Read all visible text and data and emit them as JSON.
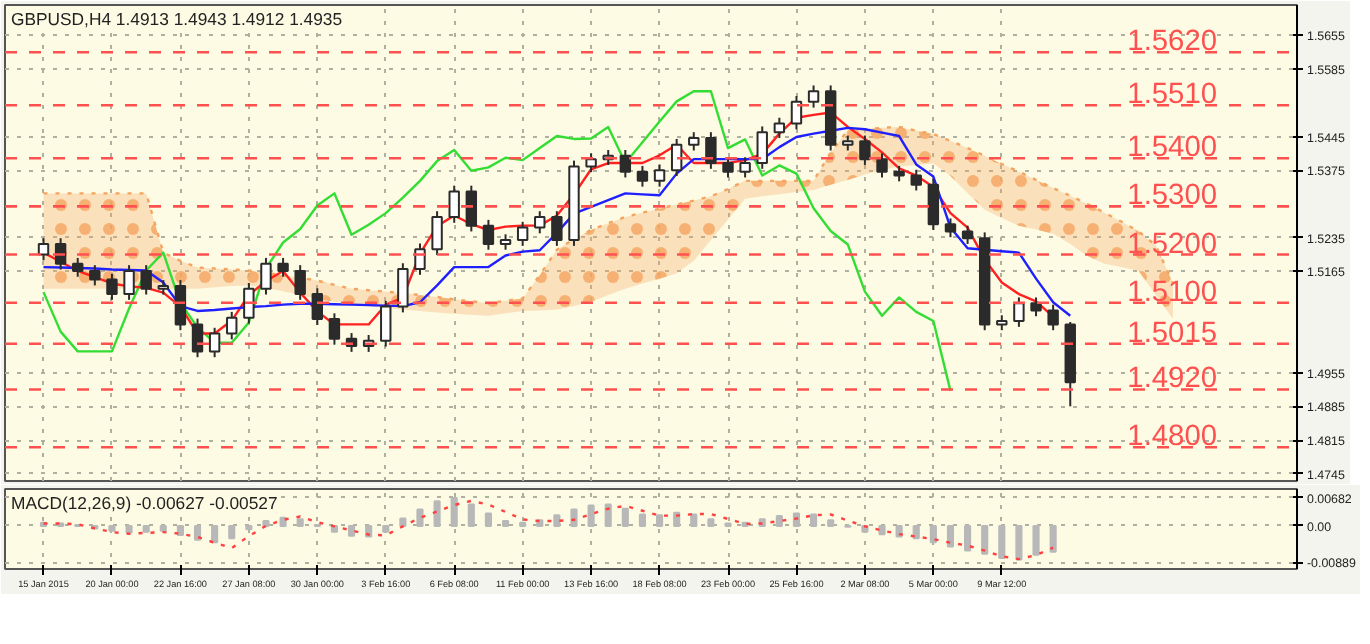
{
  "chart_data": [
    {
      "type": "candlestick",
      "title": "GBPUSD,H4 1.4913 1.4943 1.4912 1.4935",
      "color": "#2b2b2b",
      "tick_labels": "y",
      "grid": true,
      "ylim": [
        1.473,
        1.5718
      ],
      "yticks": [
        1.4745,
        1.4815,
        1.4885,
        1.4955,
        1.5165,
        1.5235,
        1.5375,
        1.5445,
        1.5585,
        1.5655
      ],
      "categories": [
        null,
        null,
        null,
        null,
        null,
        null,
        null,
        null,
        null,
        null,
        null,
        null,
        null,
        null,
        null,
        null,
        null,
        null,
        null,
        null,
        null,
        null,
        null,
        null,
        null,
        null,
        null,
        null,
        null,
        null,
        null,
        null,
        null,
        null,
        null,
        null,
        null,
        null,
        null,
        null,
        null,
        null,
        null,
        null,
        null,
        null,
        null,
        null,
        null,
        null,
        null,
        null,
        null,
        null,
        null,
        null,
        null,
        null,
        null,
        null,
        null,
        null,
        null,
        null,
        null,
        null,
        null
      ],
      "ohlc": [
        [
          1.52,
          1.5234,
          1.5188,
          1.5222
        ],
        [
          1.5222,
          1.5234,
          1.5169,
          1.5181
        ],
        [
          1.5181,
          1.5193,
          1.5154,
          1.5166
        ],
        [
          1.5166,
          1.5178,
          1.5136,
          1.5148
        ],
        [
          1.5148,
          1.516,
          1.5106,
          1.5118
        ],
        [
          1.5118,
          1.5178,
          1.5106,
          1.5166
        ],
        [
          1.5166,
          1.5178,
          1.5117,
          1.5129
        ],
        [
          1.5129,
          1.5147,
          1.5117,
          1.5135
        ],
        [
          1.5135,
          1.5147,
          1.5043,
          1.5055
        ],
        [
          1.5055,
          1.5067,
          1.4987,
          1.4999
        ],
        [
          1.4999,
          1.5048,
          1.4987,
          1.5036
        ],
        [
          1.5036,
          1.5081,
          1.5024,
          1.5069
        ],
        [
          1.5069,
          1.5141,
          1.5057,
          1.5129
        ],
        [
          1.5129,
          1.5193,
          1.5117,
          1.5181
        ],
        [
          1.5181,
          1.5193,
          1.5154,
          1.5166
        ],
        [
          1.5166,
          1.5178,
          1.5106,
          1.5118
        ],
        [
          1.5118,
          1.513,
          1.5054,
          1.5066
        ],
        [
          1.5066,
          1.5078,
          1.5013,
          1.5025
        ],
        [
          1.5025,
          1.5037,
          1.4998,
          1.501
        ],
        [
          1.501,
          1.5033,
          1.4998,
          1.5021
        ],
        [
          1.5021,
          1.5104,
          1.5009,
          1.5092
        ],
        [
          1.5092,
          1.5182,
          1.508,
          1.517
        ],
        [
          1.517,
          1.5223,
          1.5158,
          1.5211
        ],
        [
          1.5211,
          1.529,
          1.5199,
          1.5278
        ],
        [
          1.5278,
          1.5343,
          1.5266,
          1.5331
        ],
        [
          1.5331,
          1.5343,
          1.5248,
          1.526
        ],
        [
          1.526,
          1.5272,
          1.521,
          1.5222
        ],
        [
          1.5222,
          1.5242,
          1.521,
          1.523
        ],
        [
          1.523,
          1.5268,
          1.5218,
          1.5256
        ],
        [
          1.5256,
          1.529,
          1.5244,
          1.5278
        ],
        [
          1.5278,
          1.529,
          1.5218,
          1.523
        ],
        [
          1.523,
          1.5395,
          1.5218,
          1.5383
        ],
        [
          1.5383,
          1.541,
          1.5371,
          1.5398
        ],
        [
          1.5398,
          1.5417,
          1.5386,
          1.5405
        ],
        [
          1.5405,
          1.5417,
          1.536,
          1.5372
        ],
        [
          1.5372,
          1.5384,
          1.5341,
          1.5353
        ],
        [
          1.5353,
          1.5387,
          1.5341,
          1.5375
        ],
        [
          1.5375,
          1.544,
          1.5363,
          1.5428
        ],
        [
          1.5428,
          1.5454,
          1.5416,
          1.5442
        ],
        [
          1.5442,
          1.5454,
          1.5378,
          1.539
        ],
        [
          1.539,
          1.5402,
          1.536,
          1.5372
        ],
        [
          1.5372,
          1.5402,
          1.536,
          1.539
        ],
        [
          1.539,
          1.5466,
          1.5378,
          1.5454
        ],
        [
          1.5454,
          1.5484,
          1.5442,
          1.5472
        ],
        [
          1.5472,
          1.5529,
          1.546,
          1.5517
        ],
        [
          1.5517,
          1.5551,
          1.5505,
          1.5539
        ],
        [
          1.5539,
          1.5551,
          1.5416,
          1.5428
        ],
        [
          1.5428,
          1.5447,
          1.5416,
          1.5435
        ],
        [
          1.5435,
          1.5447,
          1.5386,
          1.5398
        ],
        [
          1.5398,
          1.541,
          1.536,
          1.5372
        ],
        [
          1.5372,
          1.5384,
          1.5352,
          1.5364
        ],
        [
          1.5364,
          1.5376,
          1.5333,
          1.5345
        ],
        [
          1.5345,
          1.5357,
          1.5251,
          1.5263
        ],
        [
          1.5263,
          1.5275,
          1.5236,
          1.5248
        ],
        [
          1.5248,
          1.526,
          1.5222,
          1.5234
        ],
        [
          1.5234,
          1.5246,
          1.5043,
          1.5055
        ],
        [
          1.5055,
          1.5074,
          1.5043,
          1.5062
        ],
        [
          1.5062,
          1.5111,
          1.505,
          1.5099
        ],
        [
          1.5099,
          1.5111,
          1.5072,
          1.5084
        ],
        [
          1.5084,
          1.5096,
          1.5043,
          1.5055
        ],
        [
          1.5055,
          1.506,
          1.4885,
          1.4935
        ],
        null,
        null,
        null,
        null,
        null,
        null
      ],
      "series": [
        {
          "type": "line",
          "line_style": "dotted",
          "color": "#f4a460",
          "values": [
            1.5327,
            1.5327,
            1.5327,
            1.5327,
            1.5327,
            1.5327,
            1.5327,
            1.5204,
            1.5187,
            1.5173,
            1.5171,
            1.5169,
            1.5167,
            1.5162,
            1.5157,
            1.5152,
            1.5146,
            1.5137,
            1.5129,
            1.5126,
            1.5123,
            1.512,
            1.5116,
            1.5112,
            1.5107,
            1.5103,
            1.5099,
            1.5104,
            1.5109,
            1.5157,
            1.521,
            1.5232,
            1.5251,
            1.5265,
            1.5278,
            1.5287,
            1.5295,
            1.5304,
            1.5312,
            1.5321,
            1.5336,
            1.5353,
            1.5353,
            1.5353,
            1.5353,
            1.5353,
            1.5412,
            1.5458,
            1.546,
            1.5463,
            1.5465,
            1.5457,
            1.545,
            1.5436,
            1.5421,
            1.5405,
            1.5388,
            1.5372,
            1.5355,
            1.5338,
            1.5322,
            1.5305,
            1.5287,
            1.5268,
            1.5248,
            1.5219,
            1.5141
          ],
          "lower": [
            1.5129,
            1.5129,
            1.5129,
            1.5129,
            1.5129,
            1.5129,
            1.5129,
            1.5129,
            1.5129,
            1.5129,
            1.5132,
            1.5135,
            1.5136,
            1.5131,
            1.5124,
            1.5116,
            1.5107,
            1.5102,
            1.5099,
            1.5094,
            1.5089,
            1.5086,
            1.5083,
            1.508,
            1.5077,
            1.5075,
            1.5073,
            1.5078,
            1.5083,
            1.5084,
            1.5086,
            1.5093,
            1.5102,
            1.5116,
            1.5129,
            1.514,
            1.515,
            1.5161,
            1.5187,
            1.523,
            1.5273,
            1.5316,
            1.5321,
            1.5325,
            1.533,
            1.5334,
            1.5345,
            1.5355,
            1.5366,
            1.5376,
            1.5383,
            1.5386,
            1.5389,
            1.5363,
            1.5328,
            1.5293,
            1.5276,
            1.526,
            1.5252,
            1.5243,
            1.5222,
            1.5197,
            1.5181,
            1.5174,
            1.5166,
            1.5116,
            1.5067
          ],
          "upper": [
            1.5327,
            1.5327,
            1.5327,
            1.5327,
            1.5327,
            1.5327,
            1.5327,
            1.5204,
            1.5187,
            1.5173,
            1.5171,
            1.5169,
            1.5167,
            1.5162,
            1.5157,
            1.5152,
            1.5146,
            1.5137,
            1.5129,
            1.5126,
            1.5123,
            1.512,
            1.5116,
            1.5112,
            1.5107,
            1.5103,
            1.5099,
            1.5104,
            1.5109,
            1.5157,
            1.521,
            1.5232,
            1.5251,
            1.5265,
            1.5278,
            1.5287,
            1.5295,
            1.5304,
            1.5312,
            1.5321,
            1.5336,
            1.5353,
            1.5353,
            1.5353,
            1.5353,
            1.5353,
            1.5412,
            1.5458,
            1.546,
            1.5463,
            1.5465,
            1.5457,
            1.545,
            1.5436,
            1.5421,
            1.5405,
            1.5388,
            1.5372,
            1.5355,
            1.5338,
            1.5322,
            1.5305,
            1.5287,
            1.5268,
            1.5248,
            1.5219,
            1.5141
          ]
        },
        {
          "type": "line",
          "color": "#33dd33",
          "values": [
            1.5122,
            1.504,
            1.4999,
            1.4999,
            1.4999,
            1.5088,
            1.5167,
            1.5204,
            1.5099,
            1.5049,
            1.5017,
            1.5017,
            1.5059,
            1.5171,
            1.5225,
            1.5253,
            1.5302,
            1.5327,
            1.5241,
            1.5262,
            1.5286,
            1.5318,
            1.5353,
            1.5394,
            1.5417,
            1.5374,
            1.5381,
            1.5401,
            1.5396,
            1.5421,
            1.5446,
            1.544,
            1.5441,
            1.5465,
            1.539,
            1.5433,
            1.5476,
            1.5518,
            1.5539,
            1.5539,
            1.5421,
            1.5439,
            1.5364,
            1.5385,
            1.5368,
            1.5296,
            1.5249,
            1.5221,
            1.5123,
            1.5073,
            1.5111,
            1.5081,
            1.5062,
            1.4917,
            null,
            null,
            null,
            null,
            null,
            null,
            null,
            null,
            null,
            null,
            null,
            null,
            null
          ]
        },
        {
          "type": "line",
          "color": "#ff2020",
          "values": [
            1.5204,
            1.5185,
            1.5166,
            1.5153,
            1.514,
            1.5134,
            1.5131,
            1.5121,
            1.5092,
            1.5036,
            1.5036,
            1.5063,
            1.5116,
            1.5145,
            1.5166,
            1.5121,
            1.5082,
            1.5055,
            1.5055,
            1.5055,
            1.5096,
            1.511,
            1.5202,
            1.5259,
            1.5281,
            1.5263,
            1.5251,
            1.5258,
            1.526,
            1.526,
            1.5281,
            1.5325,
            1.5377,
            1.539,
            1.539,
            1.539,
            1.5406,
            1.5428,
            1.539,
            1.539,
            1.539,
            1.5396,
            1.5409,
            1.5451,
            1.5484,
            1.549,
            1.5495,
            1.5465,
            1.544,
            1.5412,
            1.5379,
            1.5364,
            1.534,
            1.5286,
            1.5256,
            1.519,
            1.5142,
            1.5118,
            1.5103,
            1.5071,
            null,
            null,
            null,
            null,
            null,
            null,
            null
          ]
        },
        {
          "type": "line",
          "color": "#2020ff",
          "values": [
            1.5174,
            1.5173,
            1.5172,
            1.5171,
            1.5169,
            1.5168,
            1.5167,
            1.5142,
            1.5093,
            1.5083,
            1.5085,
            1.5088,
            1.5091,
            1.5093,
            1.5096,
            1.5098,
            1.5098,
            1.5097,
            1.5096,
            1.5095,
            1.5094,
            1.5093,
            1.5101,
            1.5136,
            1.5174,
            1.5174,
            1.5174,
            1.5198,
            1.5206,
            1.5209,
            1.5245,
            1.5285,
            1.5299,
            1.5313,
            1.5327,
            1.5325,
            1.5323,
            1.5368,
            1.5398,
            1.5398,
            1.5398,
            1.5398,
            1.5398,
            1.5423,
            1.5444,
            1.5451,
            1.5457,
            1.5463,
            1.546,
            1.5453,
            1.5446,
            1.5387,
            1.5362,
            1.5256,
            1.5213,
            1.521,
            1.5207,
            1.5204,
            1.515,
            1.5101,
            1.5073,
            null,
            null,
            null,
            null,
            null,
            null
          ]
        }
      ],
      "ref_lines": [
        {
          "axis": "y",
          "value": 1.562,
          "label": "1.5620",
          "color": "#ff5050",
          "line_style": "dashed"
        },
        {
          "axis": "y",
          "value": 1.551,
          "label": "1.5510",
          "color": "#ff5050",
          "line_style": "dashed"
        },
        {
          "axis": "y",
          "value": 1.54,
          "label": "1.5400",
          "color": "#ff5050",
          "line_style": "dashed"
        },
        {
          "axis": "y",
          "value": 1.53,
          "label": "1.5300",
          "color": "#ff5050",
          "line_style": "dashed"
        },
        {
          "axis": "y",
          "value": 1.52,
          "label": "1.5200",
          "color": "#ff5050",
          "line_style": "dashed"
        },
        {
          "axis": "y",
          "value": 1.51,
          "label": "1.5100",
          "color": "#ff5050",
          "line_style": "dashed"
        },
        {
          "axis": "y",
          "value": 1.5015,
          "label": "1.5015",
          "color": "#ff5050",
          "line_style": "dashed"
        },
        {
          "axis": "y",
          "value": 1.492,
          "label": "1.4920",
          "color": "#ff5050",
          "line_style": "dashed"
        },
        {
          "axis": "y",
          "value": 1.48,
          "label": "1.4800",
          "color": "#ff5050",
          "line_style": "dashed"
        }
      ]
    },
    {
      "type": "bar",
      "title": "MACD(12,26,9) -0.00627 -0.00527",
      "grid": true,
      "ylim": [
        -0.0105,
        0.009
      ],
      "yticks": [
        0.00682,
        {
          "value": 0,
          "label": "0.00"
        },
        -0.00889
      ],
      "categories": [
        "15 Jan 2015",
        null,
        null,
        null,
        "20 Jan 00:00",
        null,
        null,
        null,
        "22 Jan 16:00",
        null,
        null,
        null,
        "27 Jan 08:00",
        null,
        null,
        null,
        "30 Jan 00:00",
        null,
        null,
        null,
        "3 Feb 16:00",
        null,
        null,
        null,
        "6 Feb 08:00",
        null,
        null,
        null,
        "11 Feb 00:00",
        null,
        null,
        null,
        "13 Feb 16:00",
        null,
        null,
        null,
        "18 Feb 08:00",
        null,
        null,
        null,
        "23 Feb 00:00",
        null,
        null,
        null,
        "25 Feb 16:00",
        null,
        null,
        null,
        "2 Mar 08:00",
        null,
        null,
        null,
        "5 Mar 00:00",
        null,
        null,
        null,
        "9 Mar 12:00",
        null,
        null,
        null,
        null,
        null,
        null,
        null,
        null,
        null,
        null
      ],
      "series": [
        {
          "type": "bar",
          "color": "#b8b8b8",
          "values": [
            0.0008,
            0.0006,
            0.0002,
            -0.0006,
            -0.0012,
            -0.0016,
            -0.0014,
            -0.0012,
            -0.0022,
            -0.0034,
            -0.004,
            -0.003,
            -0.0008,
            0.0012,
            0.002,
            0.0016,
            0.0002,
            -0.0014,
            -0.0024,
            -0.0026,
            -0.0014,
            0.0018,
            0.004,
            0.006,
            0.0068,
            0.0052,
            0.003,
            0.0012,
            0.0008,
            0.0014,
            0.0026,
            0.004,
            0.005,
            0.0052,
            0.0042,
            0.0028,
            0.0026,
            0.0032,
            0.0028,
            0.0016,
            0.0006,
            0.0008,
            0.0016,
            0.0024,
            0.003,
            0.0028,
            0.0014,
            -0.0002,
            -0.0014,
            -0.002,
            -0.0026,
            -0.003,
            -0.004,
            -0.005,
            -0.006,
            -0.0068,
            -0.0078,
            -0.0082,
            -0.007,
            -0.0063,
            null,
            null,
            null,
            null,
            null,
            null,
            null
          ]
        },
        {
          "type": "line",
          "color": "#ff4040",
          "line_style": "dotted",
          "values": [
            0.0006,
            0.0006,
            0.0004,
            -0.0006,
            -0.0015,
            -0.0019,
            -0.0017,
            -0.0015,
            -0.0019,
            -0.0027,
            -0.0041,
            -0.0054,
            -0.0025,
            0.0,
            0.0015,
            0.0023,
            0.0009,
            -0.0001,
            -0.0011,
            -0.0021,
            -0.0023,
            -0.0001,
            0.002,
            0.0035,
            0.0051,
            0.0061,
            0.0052,
            0.0034,
            0.0016,
            0.0012,
            0.0012,
            0.0015,
            0.0029,
            0.0042,
            0.0049,
            0.0037,
            0.0025,
            0.0025,
            0.0029,
            0.0029,
            0.0017,
            0.0005,
            0.0006,
            0.0012,
            0.0018,
            0.0026,
            0.0028,
            0.0013,
            -0.0001,
            -0.0011,
            -0.002,
            -0.0026,
            -0.0032,
            -0.0041,
            -0.0048,
            -0.006,
            -0.0074,
            -0.0081,
            -0.0071,
            -0.0053,
            null,
            null,
            null,
            null,
            null,
            null,
            null
          ]
        }
      ]
    }
  ]
}
